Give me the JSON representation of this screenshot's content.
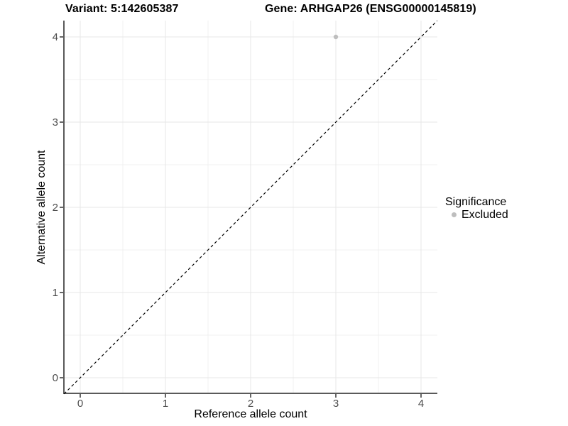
{
  "header": {
    "variant_title": "Variant: 5:142605387",
    "gene_title": "Gene: ARHGAP26 (ENSG00000145819)"
  },
  "axes": {
    "x_label": "Reference allele count",
    "y_label": "Alternative allele count"
  },
  "legend": {
    "title": "Significance",
    "entries": [
      {
        "label": "Excluded",
        "color": "#bebebe"
      }
    ]
  },
  "colors": {
    "background": "#ffffff",
    "grid_major": "#e7e7e7",
    "grid_minor": "#f0f0f0",
    "axis_line": "#5a5a5a",
    "tick_mark": "#343434",
    "tick_label": "#4d4d4d",
    "title_text": "#000000",
    "point": "#bebebe",
    "reference_line": "#000000"
  },
  "chart_data": {
    "type": "scatter",
    "title": "Variant: 5:142605387          Gene: ARHGAP26 (ENSG00000145819)",
    "xlabel": "Reference allele count",
    "ylabel": "Alternative allele count",
    "xlim": [
      -0.19,
      4.19
    ],
    "ylim": [
      -0.19,
      4.19
    ],
    "x_ticks": [
      0,
      1,
      2,
      3,
      4
    ],
    "y_ticks": [
      0,
      1,
      2,
      3,
      4
    ],
    "grid": "major and minor gridlines on, white panel",
    "legend_position": "right",
    "series": [
      {
        "name": "Excluded",
        "color": "#bebebe",
        "marker": "circle",
        "points": [
          {
            "x": 3,
            "y": 4
          }
        ]
      }
    ],
    "reference_line": {
      "style": "dashed",
      "slope": 1,
      "intercept": 0,
      "color": "#000000",
      "note": "y = x identity line spanning full panel"
    }
  }
}
